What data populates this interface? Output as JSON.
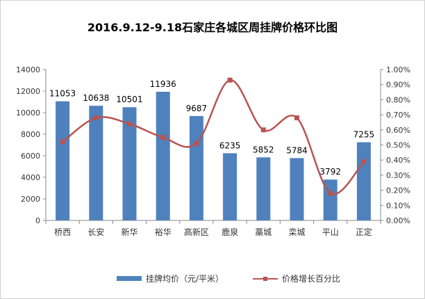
{
  "chart_data": {
    "type": "bar",
    "title": "2016.9.12-9.18石家庄各城区周挂牌价格环比图",
    "categories": [
      "桥西",
      "长安",
      "新华",
      "裕华",
      "高新区",
      "鹿泉",
      "藁城",
      "栾城",
      "平山",
      "正定"
    ],
    "series": [
      {
        "name": "挂牌均价（元/平米）",
        "type": "bar",
        "axis": "left",
        "color": "#4f81bd",
        "values": [
          11053,
          10638,
          10501,
          11936,
          9687,
          6235,
          5852,
          5784,
          3792,
          7255
        ],
        "data_labels": [
          "11053",
          "10638",
          "10501",
          "11936",
          "9687",
          "6235",
          "5852",
          "5784",
          "3792",
          "7255"
        ]
      },
      {
        "name": "价格增长百分比",
        "type": "line",
        "axis": "right",
        "color": "#b85450",
        "smooth": true,
        "values": [
          0.52,
          0.68,
          0.64,
          0.55,
          0.51,
          0.93,
          0.6,
          0.68,
          0.18,
          0.39
        ]
      }
    ],
    "y_left": {
      "min": 0,
      "max": 14000,
      "ticks": [
        0,
        2000,
        4000,
        6000,
        8000,
        10000,
        12000,
        14000
      ],
      "tick_labels": [
        "0",
        "2000",
        "4000",
        "6000",
        "8000",
        "10000",
        "12000",
        "14000"
      ]
    },
    "y_right": {
      "min": 0,
      "max": 1.0,
      "ticks": [
        0,
        0.1,
        0.2,
        0.3,
        0.4,
        0.5,
        0.6,
        0.7,
        0.8,
        0.9,
        1.0
      ],
      "tick_labels": [
        "0.00%",
        "0.10%",
        "0.20%",
        "0.30%",
        "0.40%",
        "0.50%",
        "0.60%",
        "0.70%",
        "0.80%",
        "0.90%",
        "1.00%"
      ]
    },
    "grid": false,
    "legend_position": "bottom"
  }
}
